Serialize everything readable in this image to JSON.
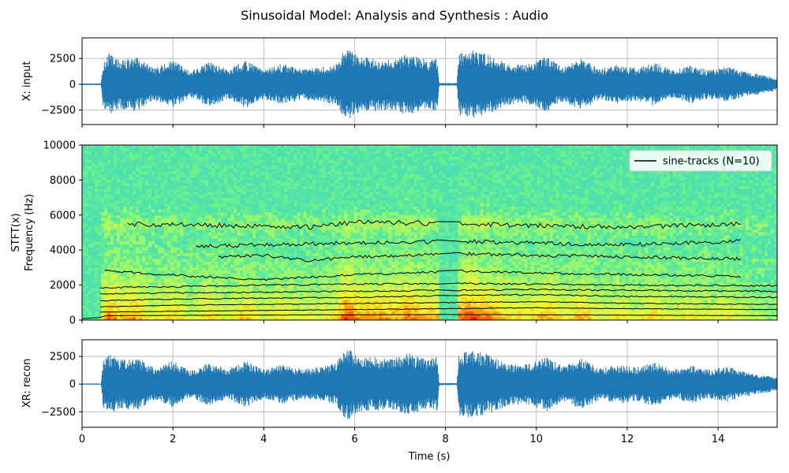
{
  "figure": {
    "title": "Sinusoidal Model: Analysis and Synthesis : Audio"
  },
  "colors": {
    "waveform": "#1f77b4",
    "track": "#000000",
    "grid": "#b0b0b0",
    "spec_base": "#5ee89a"
  },
  "chart_data": [
    {
      "type": "line",
      "name": "input",
      "ylabel": "X: input",
      "xlim": [
        0,
        15.3
      ],
      "ylim": [
        -3900,
        4500
      ],
      "yticks": [
        2500,
        0,
        -2500
      ],
      "ytick_labels": [
        "2500",
        "0",
        "−2500"
      ],
      "grid": true,
      "envelope": {
        "t": [
          0,
          0.42,
          0.46,
          0.6,
          0.8,
          1.2,
          1.6,
          2.0,
          2.4,
          2.8,
          3.2,
          3.6,
          4.0,
          4.4,
          4.8,
          5.2,
          5.6,
          5.8,
          6.1,
          6.5,
          6.8,
          7.2,
          7.6,
          7.82,
          7.86,
          8.25,
          8.3,
          8.6,
          9.0,
          9.4,
          9.8,
          10.2,
          10.6,
          11.0,
          11.4,
          11.8,
          12.2,
          12.6,
          13.0,
          13.4,
          13.8,
          14.2,
          14.6,
          15.0,
          15.3
        ],
        "amp": [
          80,
          80,
          2200,
          3000,
          2400,
          2600,
          1600,
          2300,
          1300,
          2200,
          1500,
          2300,
          1400,
          2000,
          1500,
          1600,
          2000,
          3600,
          2700,
          2600,
          2500,
          3000,
          2400,
          2600,
          120,
          120,
          3000,
          3300,
          2800,
          2000,
          1900,
          2700,
          1700,
          2500,
          1500,
          1900,
          1600,
          2100,
          1400,
          1800,
          1400,
          1700,
          1200,
          900,
          600
        ]
      }
    },
    {
      "type": "heatmap",
      "name": "spectrogram",
      "ylabel": "STFT(x)",
      "ylabel2": "Frequency (Hz)",
      "xlim": [
        0,
        15.3
      ],
      "ylim": [
        0,
        10000
      ],
      "yticks": [
        10000,
        8000,
        6000,
        4000,
        2000,
        0
      ],
      "ytick_labels": [
        "10000",
        "8000",
        "6000",
        "4000",
        "2000",
        "0"
      ],
      "legend": {
        "label": "sine-tracks (N=10)",
        "loc": "upper right"
      },
      "tracks": [
        {
          "t": [
            0,
            0.4,
            0.5,
            3,
            6,
            8,
            10,
            12,
            15.3
          ],
          "f": [
            80,
            150,
            250,
            280,
            300,
            320,
            300,
            280,
            250
          ]
        },
        {
          "t": [
            0.4,
            2,
            4,
            6,
            8,
            10,
            12,
            15.3
          ],
          "f": [
            450,
            500,
            550,
            600,
            650,
            700,
            650,
            600
          ]
        },
        {
          "t": [
            0.4,
            2,
            4,
            6,
            8,
            10,
            12,
            15.3
          ],
          "f": [
            750,
            850,
            900,
            950,
            1000,
            1050,
            950,
            900
          ]
        },
        {
          "t": [
            0.4,
            2,
            4,
            6,
            8,
            10,
            12,
            15.3
          ],
          "f": [
            1100,
            1200,
            1250,
            1300,
            1400,
            1450,
            1350,
            1300
          ]
        },
        {
          "t": [
            0.4,
            2,
            4,
            6,
            8,
            10,
            12,
            15.3
          ],
          "f": [
            1500,
            1550,
            1600,
            1650,
            1700,
            1750,
            1700,
            1650
          ]
        },
        {
          "t": [
            0.4,
            2,
            4,
            6,
            8,
            10,
            12,
            15.3
          ],
          "f": [
            1850,
            1900,
            2000,
            2050,
            2100,
            2050,
            2000,
            1950
          ]
        },
        {
          "t": [
            0.5,
            2.5,
            4,
            6,
            8.4,
            10,
            12,
            14.5
          ],
          "f": [
            2800,
            2500,
            2300,
            2600,
            2800,
            2700,
            2600,
            2500
          ]
        },
        {
          "t": [
            3,
            4,
            5,
            6,
            8.4,
            10,
            12,
            14.5
          ],
          "f": [
            3600,
            3700,
            3400,
            3600,
            3800,
            3700,
            3600,
            3500
          ]
        },
        {
          "t": [
            2.5,
            4,
            6,
            8.4,
            10,
            12,
            14.5
          ],
          "f": [
            4200,
            4300,
            4400,
            4500,
            4400,
            4300,
            4500
          ]
        },
        {
          "t": [
            1,
            3,
            5,
            6,
            8.4,
            10,
            12,
            14.5
          ],
          "f": [
            5500,
            5400,
            5300,
            5600,
            5500,
            5400,
            5300,
            5500
          ]
        }
      ]
    },
    {
      "type": "line",
      "name": "recon",
      "ylabel": "XR: recon",
      "xlabel": "Time (s)",
      "xlim": [
        0,
        15.3
      ],
      "ylim": [
        -3900,
        4000
      ],
      "yticks": [
        2500,
        0,
        -2500
      ],
      "ytick_labels": [
        "2500",
        "0",
        "−2500"
      ],
      "xticks": [
        0,
        2,
        4,
        6,
        8,
        10,
        12,
        14
      ],
      "xtick_labels": [
        "0",
        "2",
        "4",
        "6",
        "8",
        "10",
        "12",
        "14"
      ],
      "grid": true,
      "envelope": {
        "t": [
          0,
          0.42,
          0.46,
          0.6,
          0.8,
          1.2,
          1.6,
          2.0,
          2.4,
          2.8,
          3.2,
          3.6,
          4.0,
          4.4,
          4.8,
          5.2,
          5.6,
          5.8,
          6.1,
          6.5,
          6.8,
          7.2,
          7.6,
          7.82,
          7.86,
          8.25,
          8.3,
          8.6,
          9.0,
          9.4,
          9.8,
          10.2,
          10.6,
          11.0,
          11.4,
          11.8,
          12.2,
          12.6,
          13.0,
          13.4,
          13.8,
          14.2,
          14.6,
          15.0,
          15.3
        ],
        "amp": [
          60,
          60,
          2100,
          2800,
          2200,
          2400,
          1500,
          2100,
          1200,
          2000,
          1400,
          2100,
          1300,
          1800,
          1400,
          1500,
          1900,
          3500,
          2500,
          2400,
          2300,
          2800,
          2200,
          2500,
          100,
          100,
          2800,
          3100,
          2600,
          1900,
          1800,
          2500,
          1600,
          2300,
          1400,
          1800,
          1500,
          2000,
          1300,
          1700,
          1300,
          1600,
          1100,
          850,
          550
        ]
      }
    }
  ]
}
